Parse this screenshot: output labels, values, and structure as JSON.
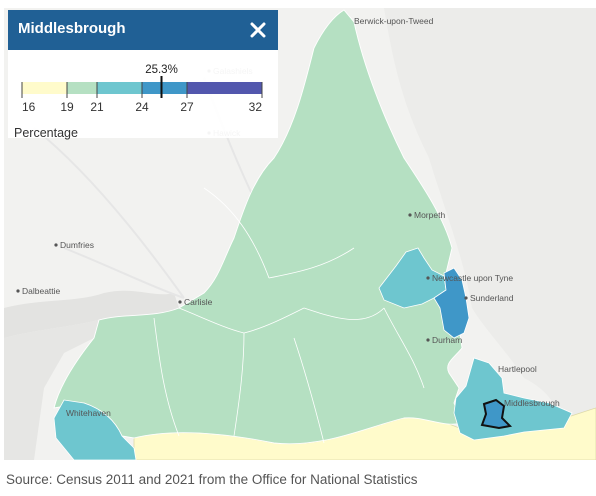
{
  "panel": {
    "area_name": "Middlesbrough",
    "close_icon": "close-icon",
    "variable_label": "Percentage",
    "selected_value": 25.3,
    "selected_value_label": "25.3%"
  },
  "legend": {
    "breaks": [
      16,
      19,
      21,
      24,
      27,
      32
    ],
    "break_labels": [
      "16",
      "19",
      "21",
      "24",
      "27",
      "32"
    ],
    "colors": [
      "#fffbcb",
      "#b5e0c2",
      "#6ec6cf",
      "#3f97c8",
      "#5257ad"
    ]
  },
  "map": {
    "places": [
      {
        "name": "Berwick-upon-Tweed",
        "dot": false
      },
      {
        "name": "Galashiels",
        "dot": true
      },
      {
        "name": "Hawick",
        "dot": true
      },
      {
        "name": "Morpeth",
        "dot": true
      },
      {
        "name": "Dumfries",
        "dot": true
      },
      {
        "name": "Dalbeattie",
        "dot": true
      },
      {
        "name": "Carlisle",
        "dot": true
      },
      {
        "name": "Newcastle upon Tyne",
        "dot": true
      },
      {
        "name": "Sunderland",
        "dot": true
      },
      {
        "name": "Durham",
        "dot": true
      },
      {
        "name": "Hartlepool",
        "dot": false
      },
      {
        "name": "Middlesbrough",
        "dot": false
      },
      {
        "name": "Whitehaven",
        "dot": false
      }
    ]
  },
  "source": "Source: Census 2011 and 2021 from the Office for National Statistics"
}
